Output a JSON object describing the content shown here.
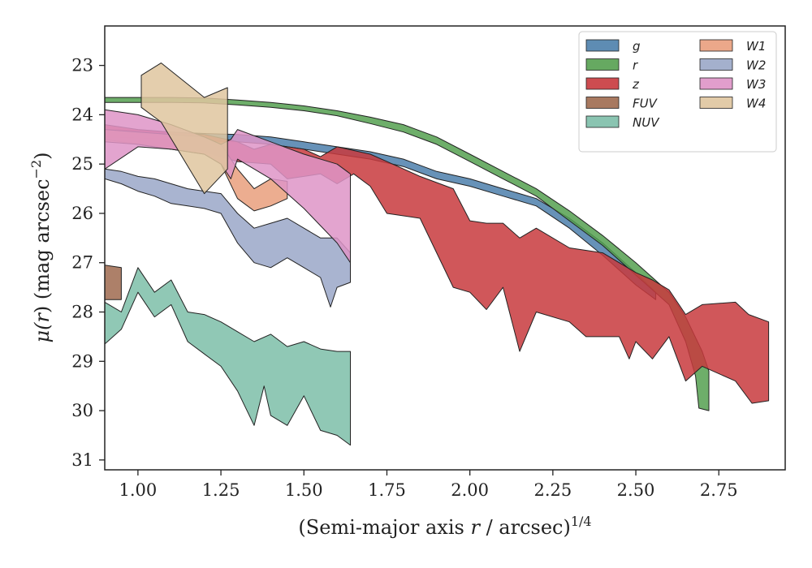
{
  "chart_data": {
    "type": "area",
    "title": "",
    "xlabel": "(Semi-major axis r / arcsec)^1/4",
    "xlabel_parts": {
      "prefix": "(Semi-major axis ",
      "var": "r",
      "mid": " / arcsec)",
      "sup": "1/4"
    },
    "ylabel": "μ(r) (mag arcsec^−2)",
    "ylabel_parts": {
      "mu": "μ(",
      "var": "r",
      "mid": ") (mag arcsec",
      "sup": "−2",
      "end": ")"
    },
    "xlim": [
      0.9,
      2.95
    ],
    "ylim": [
      31.2,
      22.2
    ],
    "y_inverted": true,
    "xticks": [
      1.0,
      1.25,
      1.5,
      1.75,
      2.0,
      2.25,
      2.5,
      2.75
    ],
    "xtick_labels": [
      "1.00",
      "1.25",
      "1.50",
      "1.75",
      "2.00",
      "2.25",
      "2.50",
      "2.75"
    ],
    "yticks": [
      23,
      24,
      25,
      26,
      27,
      28,
      29,
      30,
      31
    ],
    "ytick_labels": [
      "23",
      "24",
      "25",
      "26",
      "27",
      "28",
      "29",
      "30",
      "31"
    ],
    "grid": false,
    "legend_position": "top-right",
    "legend_columns": 2,
    "series": [
      {
        "name": "g",
        "color": "#4c7fab",
        "upper": [
          [
            0.9,
            24.3
          ],
          [
            1.0,
            24.32
          ],
          [
            1.1,
            24.35
          ],
          [
            1.2,
            24.38
          ],
          [
            1.3,
            24.4
          ],
          [
            1.4,
            24.45
          ],
          [
            1.5,
            24.55
          ],
          [
            1.6,
            24.65
          ],
          [
            1.7,
            24.75
          ],
          [
            1.8,
            24.9
          ],
          [
            1.9,
            25.15
          ],
          [
            2.0,
            25.3
          ],
          [
            2.1,
            25.5
          ],
          [
            2.2,
            25.7
          ],
          [
            2.3,
            26.1
          ],
          [
            2.4,
            26.6
          ],
          [
            2.5,
            27.2
          ],
          [
            2.56,
            27.6
          ]
        ],
        "lower": [
          [
            0.9,
            24.45
          ],
          [
            1.0,
            24.47
          ],
          [
            1.1,
            24.5
          ],
          [
            1.2,
            24.53
          ],
          [
            1.3,
            24.55
          ],
          [
            1.4,
            24.6
          ],
          [
            1.5,
            24.7
          ],
          [
            1.6,
            24.8
          ],
          [
            1.7,
            24.9
          ],
          [
            1.8,
            25.05
          ],
          [
            1.9,
            25.3
          ],
          [
            2.0,
            25.45
          ],
          [
            2.1,
            25.65
          ],
          [
            2.2,
            25.85
          ],
          [
            2.3,
            26.3
          ],
          [
            2.4,
            26.85
          ],
          [
            2.5,
            27.45
          ],
          [
            2.56,
            27.75
          ]
        ]
      },
      {
        "name": "r",
        "color": "#55a050",
        "upper": [
          [
            0.9,
            23.65
          ],
          [
            1.0,
            23.65
          ],
          [
            1.1,
            23.65
          ],
          [
            1.2,
            23.66
          ],
          [
            1.3,
            23.7
          ],
          [
            1.4,
            23.75
          ],
          [
            1.5,
            23.82
          ],
          [
            1.6,
            23.92
          ],
          [
            1.7,
            24.05
          ],
          [
            1.8,
            24.2
          ],
          [
            1.9,
            24.45
          ],
          [
            2.0,
            24.8
          ],
          [
            2.1,
            25.15
          ],
          [
            2.2,
            25.5
          ],
          [
            2.3,
            25.95
          ],
          [
            2.4,
            26.45
          ],
          [
            2.5,
            27.0
          ],
          [
            2.6,
            27.6
          ],
          [
            2.65,
            28.1
          ],
          [
            2.7,
            28.8
          ],
          [
            2.72,
            29.2
          ]
        ],
        "lower": [
          [
            0.9,
            23.75
          ],
          [
            1.0,
            23.75
          ],
          [
            1.1,
            23.75
          ],
          [
            1.2,
            23.76
          ],
          [
            1.3,
            23.8
          ],
          [
            1.4,
            23.85
          ],
          [
            1.5,
            23.92
          ],
          [
            1.6,
            24.02
          ],
          [
            1.7,
            24.18
          ],
          [
            1.8,
            24.35
          ],
          [
            1.9,
            24.6
          ],
          [
            2.0,
            24.95
          ],
          [
            2.1,
            25.3
          ],
          [
            2.2,
            25.65
          ],
          [
            2.3,
            26.15
          ],
          [
            2.4,
            26.65
          ],
          [
            2.5,
            27.25
          ],
          [
            2.6,
            27.85
          ],
          [
            2.65,
            28.6
          ],
          [
            2.68,
            29.3
          ],
          [
            2.69,
            29.95
          ],
          [
            2.72,
            30.0
          ]
        ]
      },
      {
        "name": "z",
        "color": "#c8393d",
        "upper": [
          [
            0.9,
            24.2
          ],
          [
            1.0,
            24.3
          ],
          [
            1.1,
            24.35
          ],
          [
            1.2,
            24.4
          ],
          [
            1.3,
            24.55
          ],
          [
            1.35,
            24.7
          ],
          [
            1.4,
            24.6
          ],
          [
            1.5,
            24.7
          ],
          [
            1.55,
            24.85
          ],
          [
            1.6,
            24.65
          ],
          [
            1.7,
            24.8
          ],
          [
            1.75,
            24.95
          ],
          [
            1.85,
            25.25
          ],
          [
            1.95,
            25.5
          ],
          [
            2.0,
            26.15
          ],
          [
            2.05,
            26.2
          ],
          [
            2.1,
            26.2
          ],
          [
            2.15,
            26.5
          ],
          [
            2.2,
            26.3
          ],
          [
            2.3,
            26.7
          ],
          [
            2.4,
            26.8
          ],
          [
            2.5,
            27.2
          ],
          [
            2.55,
            27.35
          ],
          [
            2.6,
            27.55
          ],
          [
            2.65,
            28.05
          ],
          [
            2.7,
            27.85
          ],
          [
            2.8,
            27.8
          ],
          [
            2.84,
            28.05
          ],
          [
            2.9,
            28.2
          ]
        ],
        "lower": [
          [
            0.9,
            24.5
          ],
          [
            1.0,
            24.6
          ],
          [
            1.1,
            24.7
          ],
          [
            1.2,
            24.75
          ],
          [
            1.3,
            24.95
          ],
          [
            1.4,
            25.0
          ],
          [
            1.45,
            25.3
          ],
          [
            1.55,
            25.2
          ],
          [
            1.6,
            25.4
          ],
          [
            1.65,
            25.2
          ],
          [
            1.7,
            25.45
          ],
          [
            1.75,
            26.0
          ],
          [
            1.85,
            26.1
          ],
          [
            1.95,
            27.5
          ],
          [
            2.0,
            27.6
          ],
          [
            2.05,
            27.95
          ],
          [
            2.1,
            27.5
          ],
          [
            2.15,
            28.8
          ],
          [
            2.2,
            28.0
          ],
          [
            2.3,
            28.2
          ],
          [
            2.35,
            28.5
          ],
          [
            2.45,
            28.5
          ],
          [
            2.48,
            28.95
          ],
          [
            2.5,
            28.6
          ],
          [
            2.55,
            28.95
          ],
          [
            2.6,
            28.5
          ],
          [
            2.65,
            29.4
          ],
          [
            2.7,
            29.1
          ],
          [
            2.8,
            29.4
          ],
          [
            2.85,
            29.85
          ],
          [
            2.9,
            29.8
          ]
        ]
      },
      {
        "name": "FUV",
        "color": "#9f6a4f",
        "upper": [
          [
            0.9,
            27.05
          ],
          [
            0.95,
            27.1
          ]
        ],
        "lower": [
          [
            0.9,
            27.75
          ],
          [
            0.95,
            27.75
          ]
        ]
      },
      {
        "name": "NUV",
        "color": "#7dbea8",
        "upper": [
          [
            0.9,
            27.8
          ],
          [
            0.95,
            28.0
          ],
          [
            1.0,
            27.1
          ],
          [
            1.05,
            27.6
          ],
          [
            1.1,
            27.35
          ],
          [
            1.15,
            28.0
          ],
          [
            1.2,
            28.05
          ],
          [
            1.25,
            28.2
          ],
          [
            1.3,
            28.4
          ],
          [
            1.35,
            28.6
          ],
          [
            1.4,
            28.45
          ],
          [
            1.45,
            28.7
          ],
          [
            1.5,
            28.6
          ],
          [
            1.55,
            28.75
          ],
          [
            1.6,
            28.8
          ],
          [
            1.64,
            28.8
          ]
        ],
        "lower": [
          [
            0.9,
            28.65
          ],
          [
            0.95,
            28.35
          ],
          [
            1.0,
            27.6
          ],
          [
            1.05,
            28.1
          ],
          [
            1.1,
            27.85
          ],
          [
            1.15,
            28.6
          ],
          [
            1.2,
            28.85
          ],
          [
            1.25,
            29.1
          ],
          [
            1.3,
            29.6
          ],
          [
            1.35,
            30.3
          ],
          [
            1.38,
            29.5
          ],
          [
            1.4,
            30.1
          ],
          [
            1.45,
            30.3
          ],
          [
            1.5,
            29.7
          ],
          [
            1.55,
            30.4
          ],
          [
            1.6,
            30.5
          ],
          [
            1.64,
            30.7
          ]
        ]
      },
      {
        "name": "W1",
        "color": "#e99f7d",
        "upper": [
          [
            0.9,
            24.3
          ],
          [
            1.0,
            24.35
          ],
          [
            1.1,
            24.4
          ],
          [
            1.2,
            24.45
          ],
          [
            1.25,
            24.6
          ],
          [
            1.3,
            25.1
          ],
          [
            1.35,
            25.5
          ],
          [
            1.4,
            25.3
          ],
          [
            1.45,
            25.35
          ]
        ],
        "lower": [
          [
            0.9,
            24.55
          ],
          [
            1.0,
            24.6
          ],
          [
            1.1,
            24.7
          ],
          [
            1.2,
            24.8
          ],
          [
            1.25,
            25.0
          ],
          [
            1.3,
            25.7
          ],
          [
            1.35,
            25.95
          ],
          [
            1.4,
            25.85
          ],
          [
            1.45,
            25.7
          ]
        ]
      },
      {
        "name": "W2",
        "color": "#9aa7c8",
        "upper": [
          [
            0.9,
            25.1
          ],
          [
            0.95,
            25.15
          ],
          [
            1.0,
            25.25
          ],
          [
            1.05,
            25.3
          ],
          [
            1.1,
            25.4
          ],
          [
            1.15,
            25.5
          ],
          [
            1.2,
            25.55
          ],
          [
            1.25,
            25.6
          ],
          [
            1.3,
            26.0
          ],
          [
            1.35,
            26.3
          ],
          [
            1.4,
            26.2
          ],
          [
            1.45,
            26.1
          ],
          [
            1.5,
            26.3
          ],
          [
            1.55,
            26.5
          ],
          [
            1.6,
            26.5
          ],
          [
            1.64,
            26.8
          ]
        ],
        "lower": [
          [
            0.9,
            25.3
          ],
          [
            0.95,
            25.4
          ],
          [
            1.0,
            25.55
          ],
          [
            1.05,
            25.65
          ],
          [
            1.1,
            25.8
          ],
          [
            1.15,
            25.85
          ],
          [
            1.2,
            25.9
          ],
          [
            1.25,
            26.0
          ],
          [
            1.3,
            26.6
          ],
          [
            1.35,
            27.0
          ],
          [
            1.4,
            27.1
          ],
          [
            1.45,
            26.9
          ],
          [
            1.5,
            27.1
          ],
          [
            1.55,
            27.3
          ],
          [
            1.58,
            27.9
          ],
          [
            1.6,
            27.5
          ],
          [
            1.64,
            27.4
          ]
        ]
      },
      {
        "name": "W3",
        "color": "#de94c7",
        "upper": [
          [
            0.9,
            23.9
          ],
          [
            1.0,
            24.0
          ],
          [
            1.1,
            24.2
          ],
          [
            1.2,
            24.45
          ],
          [
            1.25,
            24.6
          ],
          [
            1.28,
            24.5
          ],
          [
            1.3,
            24.3
          ],
          [
            1.4,
            24.55
          ],
          [
            1.5,
            24.8
          ],
          [
            1.6,
            25.0
          ],
          [
            1.64,
            25.2
          ]
        ],
        "lower": [
          [
            0.9,
            25.1
          ],
          [
            1.0,
            24.65
          ],
          [
            1.1,
            24.7
          ],
          [
            1.2,
            24.8
          ],
          [
            1.25,
            25.0
          ],
          [
            1.28,
            25.3
          ],
          [
            1.3,
            24.9
          ],
          [
            1.4,
            25.3
          ],
          [
            1.5,
            25.9
          ],
          [
            1.6,
            26.6
          ],
          [
            1.64,
            27.0
          ]
        ]
      },
      {
        "name": "W4",
        "color": "#dfc59f",
        "upper": [
          [
            1.01,
            23.2
          ],
          [
            1.07,
            22.95
          ],
          [
            1.2,
            23.65
          ],
          [
            1.27,
            23.45
          ]
        ],
        "lower": [
          [
            1.01,
            23.85
          ],
          [
            1.07,
            24.15
          ],
          [
            1.2,
            25.6
          ],
          [
            1.27,
            25.1
          ]
        ]
      }
    ]
  }
}
